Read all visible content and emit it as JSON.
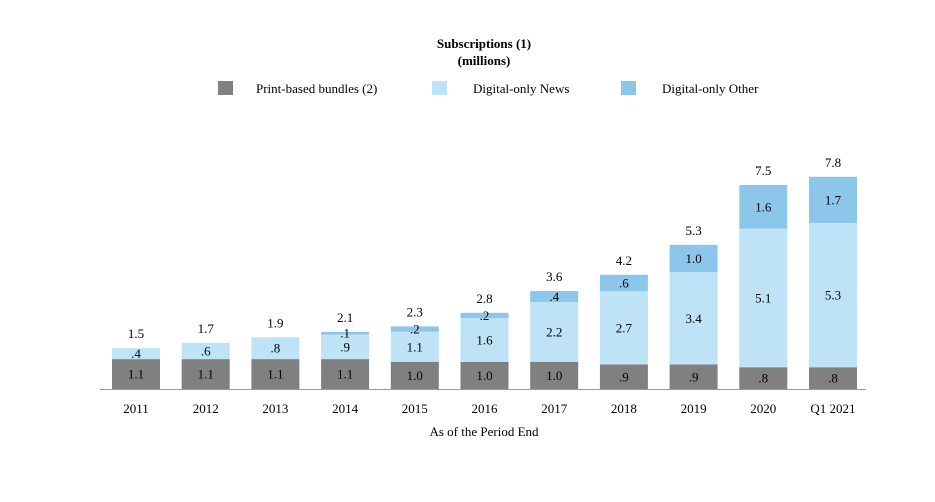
{
  "chart_data": {
    "type": "bar",
    "stacked": true,
    "title": "Subscriptions (1)",
    "subtitle": "(millions)",
    "xlabel": "As of the Period End",
    "ylabel": "",
    "ylim": [
      0,
      8.5
    ],
    "grid": false,
    "legend_position": "top",
    "categories": [
      "2011",
      "2012",
      "2013",
      "2014",
      "2015",
      "2016",
      "2017",
      "2018",
      "2019",
      "2020",
      "Q1 2021"
    ],
    "series": [
      {
        "name": "Print-based bundles (2)",
        "color": "#808080",
        "values": [
          1.1,
          1.1,
          1.1,
          1.1,
          1.0,
          1.0,
          1.0,
          0.9,
          0.9,
          0.8,
          0.8
        ],
        "labels": [
          "1.1",
          "1.1",
          "1.1",
          "1.1",
          "1.0",
          "1.0",
          "1.0",
          ".9",
          ".9",
          ".8",
          ".8"
        ]
      },
      {
        "name": "Digital-only News",
        "color": "#bfe3f6",
        "values": [
          0.4,
          0.6,
          0.8,
          0.9,
          1.1,
          1.6,
          2.2,
          2.7,
          3.4,
          5.1,
          5.3
        ],
        "labels": [
          ".4",
          ".6",
          ".8",
          ".9",
          "1.1",
          "1.6",
          "2.2",
          "2.7",
          "3.4",
          "5.1",
          "5.3"
        ]
      },
      {
        "name": "Digital-only Other",
        "color": "#8cc6ea",
        "values": [
          0,
          0,
          0,
          0.1,
          0.2,
          0.2,
          0.4,
          0.6,
          1.0,
          1.6,
          1.7
        ],
        "labels": [
          "",
          "",
          "",
          ".1",
          ".2",
          ".2",
          ".4",
          ".6",
          "1.0",
          "1.6",
          "1.7"
        ]
      }
    ],
    "totals": [
      "1.5",
      "1.7",
      "1.9",
      "2.1",
      "2.3",
      "2.8",
      "3.6",
      "4.2",
      "5.3",
      "7.5",
      "7.8"
    ]
  }
}
